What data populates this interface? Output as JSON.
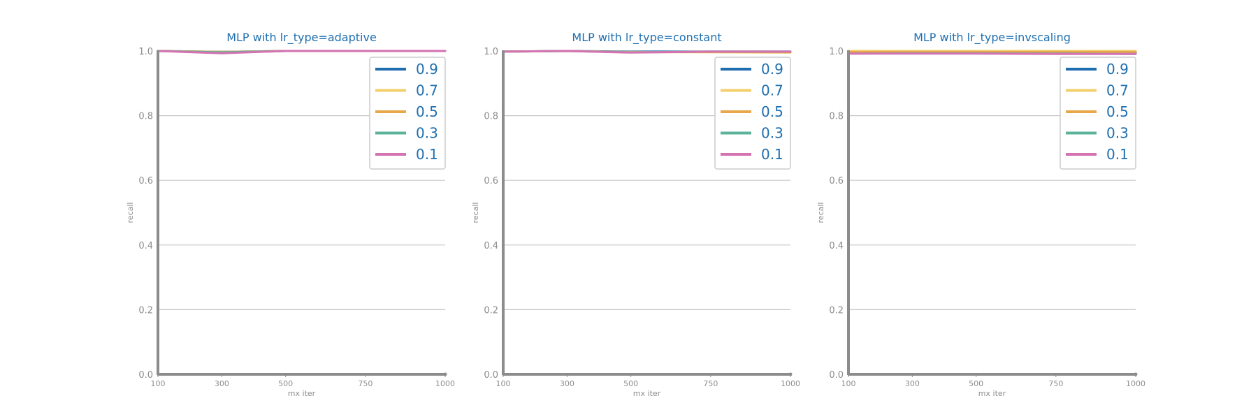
{
  "colors": {
    "title": "#1f6fb0",
    "axis_text": "#8c8c8c",
    "spine": "#8c8c8c",
    "grid": "#c8c8c8",
    "legend_text": "#1f6fb0",
    "legend_border": "#cccccc"
  },
  "chart_data": [
    {
      "type": "line",
      "title": "MLP with lr_type=adaptive",
      "xlabel": "mx iter",
      "ylabel": "recall",
      "categories": [
        "100",
        "300",
        "500",
        "750",
        "1000"
      ],
      "x": [
        100,
        300,
        500,
        750,
        1000
      ],
      "ylim": [
        0.0,
        1.0
      ],
      "yticks": [
        "0.0",
        "0.2",
        "0.4",
        "0.6",
        "0.8",
        "1.0"
      ],
      "grid": "horizontal",
      "legend_position": "upper right",
      "series": [
        {
          "name": "0.9",
          "color": "#1f6fb0",
          "values": [
            1.0,
            0.997,
            1.0,
            1.0,
            1.0
          ]
        },
        {
          "name": "0.7",
          "color": "#f3cf6b",
          "values": [
            1.0,
            0.997,
            1.0,
            1.0,
            1.0
          ]
        },
        {
          "name": "0.5",
          "color": "#e8a84a",
          "values": [
            1.0,
            0.997,
            1.0,
            1.0,
            1.0
          ]
        },
        {
          "name": "0.3",
          "color": "#5cb39a",
          "values": [
            1.0,
            0.996,
            1.0,
            1.0,
            1.0
          ]
        },
        {
          "name": "0.1",
          "color": "#d472b2",
          "values": [
            1.0,
            0.993,
            1.0,
            1.0,
            1.0
          ]
        }
      ]
    },
    {
      "type": "line",
      "title": "MLP with lr_type=constant",
      "xlabel": "mx iter",
      "ylabel": "recall",
      "categories": [
        "100",
        "300",
        "500",
        "750",
        "1000"
      ],
      "x": [
        100,
        300,
        500,
        750,
        1000
      ],
      "ylim": [
        0.0,
        1.0
      ],
      "yticks": [
        "0.0",
        "0.2",
        "0.4",
        "0.6",
        "0.8",
        "1.0"
      ],
      "grid": "horizontal",
      "legend_position": "upper right",
      "series": [
        {
          "name": "0.9",
          "color": "#1f6fb0",
          "values": [
            0.998,
            1.0,
            0.998,
            0.998,
            0.998
          ]
        },
        {
          "name": "0.7",
          "color": "#f3cf6b",
          "values": [
            0.998,
            1.0,
            0.997,
            0.996,
            0.995
          ]
        },
        {
          "name": "0.5",
          "color": "#e8a84a",
          "values": [
            0.998,
            1.0,
            0.996,
            0.997,
            0.996
          ]
        },
        {
          "name": "0.3",
          "color": "#5cb39a",
          "values": [
            0.998,
            1.0,
            0.996,
            0.998,
            0.998
          ]
        },
        {
          "name": "0.1",
          "color": "#d472b2",
          "values": [
            0.998,
            1.0,
            0.995,
            0.998,
            0.998
          ]
        }
      ]
    },
    {
      "type": "line",
      "title": "MLP with lr_type=invscaling",
      "xlabel": "mx iter",
      "ylabel": "recall",
      "categories": [
        "100",
        "300",
        "500",
        "750",
        "1000"
      ],
      "x": [
        100,
        300,
        500,
        750,
        1000
      ],
      "ylim": [
        0.0,
        1.0
      ],
      "yticks": [
        "0.0",
        "0.2",
        "0.4",
        "0.6",
        "0.8",
        "1.0"
      ],
      "grid": "horizontal",
      "legend_position": "upper right",
      "series": [
        {
          "name": "0.9",
          "color": "#1f6fb0",
          "values": [
            0.993,
            0.993,
            0.994,
            0.994,
            0.994
          ]
        },
        {
          "name": "0.7",
          "color": "#f3cf6b",
          "values": [
            1.0,
            1.0,
            1.0,
            1.0,
            1.0
          ]
        },
        {
          "name": "0.5",
          "color": "#e8a84a",
          "values": [
            0.997,
            0.997,
            0.997,
            0.997,
            0.997
          ]
        },
        {
          "name": "0.3",
          "color": "#5cb39a",
          "values": [
            0.992,
            0.993,
            0.993,
            0.992,
            0.991
          ]
        },
        {
          "name": "0.1",
          "color": "#d472b2",
          "values": [
            0.992,
            0.992,
            0.992,
            0.991,
            0.991
          ]
        }
      ]
    }
  ]
}
